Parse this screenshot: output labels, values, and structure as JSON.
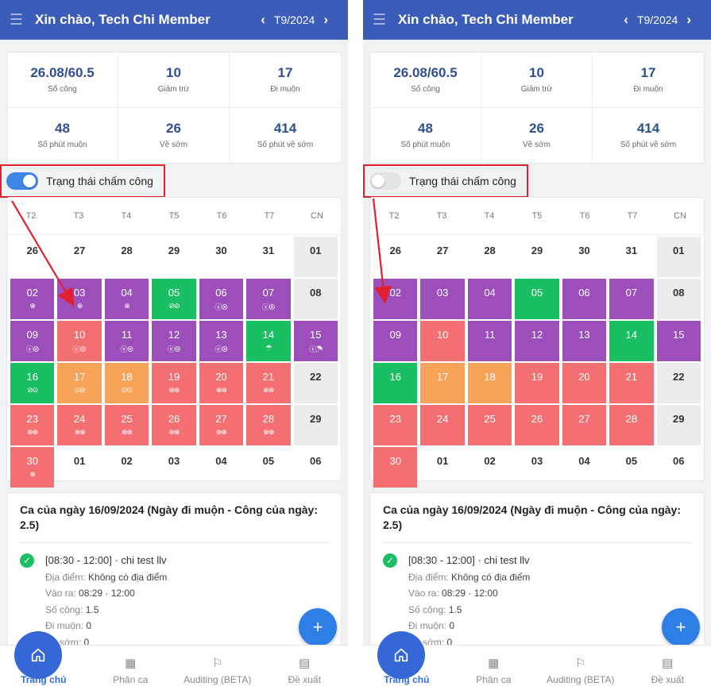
{
  "colors": {
    "purple": "#9c4fbb",
    "red": "#f46f71",
    "green": "#1bbf63",
    "orange": "#f7a35a",
    "accent": "#3b5cb8",
    "highlight": "#e0202e"
  },
  "screens": [
    {
      "header": {
        "title": "Xin chào, Tech Chi Member",
        "month": "T9/2024",
        "prev_icon": "chevron-left-icon",
        "next_icon": "chevron-right-icon",
        "menu_icon": "hamburger-menu-icon"
      },
      "stats": [
        {
          "value": "26.08/60.5",
          "label": "Số công"
        },
        {
          "value": "10",
          "label": "Giảm trừ"
        },
        {
          "value": "17",
          "label": "Đi muộn"
        },
        {
          "value": "48",
          "label": "Số phút muộn"
        },
        {
          "value": "26",
          "label": "Về sớm"
        },
        {
          "value": "414",
          "label": "Số phút về sớm"
        }
      ],
      "toggle": {
        "label": "Trạng thái chấm công",
        "on": true
      },
      "weekdays": [
        "T2",
        "T3",
        "T4",
        "T5",
        "T6",
        "T7",
        "CN"
      ],
      "days": [
        {
          "n": "26",
          "c": "plain",
          "m": ""
        },
        {
          "n": "27",
          "c": "plain",
          "m": ""
        },
        {
          "n": "28",
          "c": "plain",
          "m": ""
        },
        {
          "n": "29",
          "c": "plain",
          "m": ""
        },
        {
          "n": "30",
          "c": "plain",
          "m": ""
        },
        {
          "n": "31",
          "c": "plain",
          "m": ""
        },
        {
          "n": "01",
          "c": "sunday",
          "m": ""
        },
        {
          "n": "02",
          "c": "purple",
          "m": "⊗"
        },
        {
          "n": "03",
          "c": "purple",
          "m": "⊗"
        },
        {
          "n": "04",
          "c": "purple",
          "m": "⊗"
        },
        {
          "n": "05",
          "c": "green",
          "m": "⊘⊘"
        },
        {
          "n": "06",
          "c": "purple",
          "m": "ⓢ⊗"
        },
        {
          "n": "07",
          "c": "purple",
          "m": "ⓢ⊗"
        },
        {
          "n": "08",
          "c": "sunday",
          "m": ""
        },
        {
          "n": "09",
          "c": "purple",
          "m": "ⓢ⊗"
        },
        {
          "n": "10",
          "c": "red",
          "m": "ⓔ⊗"
        },
        {
          "n": "11",
          "c": "purple",
          "m": "ⓔ⊗"
        },
        {
          "n": "12",
          "c": "purple",
          "m": "ⓔ⊗"
        },
        {
          "n": "13",
          "c": "purple",
          "m": "ⓔ⊗"
        },
        {
          "n": "14",
          "c": "green",
          "m": "☂"
        },
        {
          "n": "15",
          "c": "purple",
          "m": "ⓢ☂"
        },
        {
          "n": "16",
          "c": "green",
          "m": "⊘⊙"
        },
        {
          "n": "17",
          "c": "orange",
          "m": "⊙⊘"
        },
        {
          "n": "18",
          "c": "orange",
          "m": "⊙⊙"
        },
        {
          "n": "19",
          "c": "red",
          "m": "⊗⊗"
        },
        {
          "n": "20",
          "c": "red",
          "m": "⊗⊗"
        },
        {
          "n": "21",
          "c": "red",
          "m": "⊗⊗"
        },
        {
          "n": "22",
          "c": "sunday",
          "m": ""
        },
        {
          "n": "23",
          "c": "red",
          "m": "⊗⊗"
        },
        {
          "n": "24",
          "c": "red",
          "m": "⊗⊗"
        },
        {
          "n": "25",
          "c": "red",
          "m": "⊗⊗"
        },
        {
          "n": "26",
          "c": "red",
          "m": "⊗⊗"
        },
        {
          "n": "27",
          "c": "red",
          "m": "⊗⊗"
        },
        {
          "n": "28",
          "c": "red",
          "m": "⊗⊗"
        },
        {
          "n": "29",
          "c": "sunday",
          "m": ""
        },
        {
          "n": "30",
          "c": "red",
          "m": "⊗"
        },
        {
          "n": "01",
          "c": "plain",
          "m": ""
        },
        {
          "n": "02",
          "c": "plain",
          "m": ""
        },
        {
          "n": "03",
          "c": "plain",
          "m": ""
        },
        {
          "n": "04",
          "c": "plain",
          "m": ""
        },
        {
          "n": "05",
          "c": "plain",
          "m": ""
        },
        {
          "n": "06",
          "c": "plain",
          "m": ""
        }
      ],
      "shift": {
        "title": "Ca của ngày 16/09/2024 (Ngày đi muộn - Công của ngày: 2.5)",
        "time": "[08:30 - 12:00] · chi test llv",
        "location_label": "Địa điểm:",
        "location_value": "Không có địa điểm",
        "inout_label": "Vào ra:",
        "inout_value": "08:29 · 12:00",
        "cong_label": "Số công:",
        "cong_value": "1.5",
        "late_label": "Đi muộn:",
        "late_value": "0",
        "early_label": "sớm:",
        "early_value": "0"
      },
      "fab_icon": "plus-icon",
      "nav": [
        {
          "label": "Trang chủ",
          "icon": "home-icon",
          "active": true
        },
        {
          "label": "Phân ca",
          "icon": "calendar-edit-icon",
          "active": false
        },
        {
          "label": "Auditing (BETA)",
          "icon": "flag-icon",
          "active": false
        },
        {
          "label": "Đề xuất",
          "icon": "document-icon",
          "active": false
        }
      ]
    },
    {
      "header": {
        "title": "Xin chào, Tech Chi Member",
        "month": "T9/2024",
        "prev_icon": "chevron-left-icon",
        "next_icon": "chevron-right-icon",
        "menu_icon": "hamburger-menu-icon"
      },
      "stats": [
        {
          "value": "26.08/60.5",
          "label": "Số công"
        },
        {
          "value": "10",
          "label": "Giảm trừ"
        },
        {
          "value": "17",
          "label": "Đi muộn"
        },
        {
          "value": "48",
          "label": "Số phút muộn"
        },
        {
          "value": "26",
          "label": "Về sớm"
        },
        {
          "value": "414",
          "label": "Số phút về sớm"
        }
      ],
      "toggle": {
        "label": "Trạng thái chấm công",
        "on": false
      },
      "weekdays": [
        "T2",
        "T3",
        "T4",
        "T5",
        "T6",
        "T7",
        "CN"
      ],
      "days": [
        {
          "n": "26",
          "c": "plain",
          "m": ""
        },
        {
          "n": "27",
          "c": "plain",
          "m": ""
        },
        {
          "n": "28",
          "c": "plain",
          "m": ""
        },
        {
          "n": "29",
          "c": "plain",
          "m": ""
        },
        {
          "n": "30",
          "c": "plain",
          "m": ""
        },
        {
          "n": "31",
          "c": "plain",
          "m": ""
        },
        {
          "n": "01",
          "c": "sunday",
          "m": ""
        },
        {
          "n": "02",
          "c": "purple",
          "m": ""
        },
        {
          "n": "03",
          "c": "purple",
          "m": ""
        },
        {
          "n": "04",
          "c": "purple",
          "m": ""
        },
        {
          "n": "05",
          "c": "green",
          "m": ""
        },
        {
          "n": "06",
          "c": "purple",
          "m": ""
        },
        {
          "n": "07",
          "c": "purple",
          "m": ""
        },
        {
          "n": "08",
          "c": "sunday",
          "m": ""
        },
        {
          "n": "09",
          "c": "purple",
          "m": ""
        },
        {
          "n": "10",
          "c": "red",
          "m": ""
        },
        {
          "n": "11",
          "c": "purple",
          "m": ""
        },
        {
          "n": "12",
          "c": "purple",
          "m": ""
        },
        {
          "n": "13",
          "c": "purple",
          "m": ""
        },
        {
          "n": "14",
          "c": "green",
          "m": ""
        },
        {
          "n": "15",
          "c": "purple",
          "m": ""
        },
        {
          "n": "16",
          "c": "green",
          "m": ""
        },
        {
          "n": "17",
          "c": "orange",
          "m": ""
        },
        {
          "n": "18",
          "c": "orange",
          "m": ""
        },
        {
          "n": "19",
          "c": "red",
          "m": ""
        },
        {
          "n": "20",
          "c": "red",
          "m": ""
        },
        {
          "n": "21",
          "c": "red",
          "m": ""
        },
        {
          "n": "22",
          "c": "sunday",
          "m": ""
        },
        {
          "n": "23",
          "c": "red",
          "m": ""
        },
        {
          "n": "24",
          "c": "red",
          "m": ""
        },
        {
          "n": "25",
          "c": "red",
          "m": ""
        },
        {
          "n": "26",
          "c": "red",
          "m": ""
        },
        {
          "n": "27",
          "c": "red",
          "m": ""
        },
        {
          "n": "28",
          "c": "red",
          "m": ""
        },
        {
          "n": "29",
          "c": "sunday",
          "m": ""
        },
        {
          "n": "30",
          "c": "red",
          "m": ""
        },
        {
          "n": "01",
          "c": "plain",
          "m": ""
        },
        {
          "n": "02",
          "c": "plain",
          "m": ""
        },
        {
          "n": "03",
          "c": "plain",
          "m": ""
        },
        {
          "n": "04",
          "c": "plain",
          "m": ""
        },
        {
          "n": "05",
          "c": "plain",
          "m": ""
        },
        {
          "n": "06",
          "c": "plain",
          "m": ""
        }
      ],
      "shift": {
        "title": "Ca của ngày 16/09/2024 (Ngày đi muộn - Công của ngày: 2.5)",
        "time": "[08:30 - 12:00] · chi test llv",
        "location_label": "Địa điểm:",
        "location_value": "Không có địa điểm",
        "inout_label": "Vào ra:",
        "inout_value": "08:29 · 12:00",
        "cong_label": "Số công:",
        "cong_value": "1.5",
        "late_label": "Đi muộn:",
        "late_value": "0",
        "early_label": "sớm:",
        "early_value": "0"
      },
      "fab_icon": "plus-icon",
      "nav": [
        {
          "label": "Trang chủ",
          "icon": "home-icon",
          "active": true
        },
        {
          "label": "Phân ca",
          "icon": "calendar-edit-icon",
          "active": false
        },
        {
          "label": "Auditing (BETA)",
          "icon": "flag-icon",
          "active": false
        },
        {
          "label": "Đề xuất",
          "icon": "document-icon",
          "active": false
        }
      ]
    }
  ]
}
